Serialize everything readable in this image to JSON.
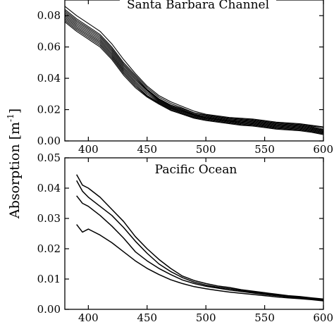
{
  "ylabel_text": "Absorption [m",
  "ylabel_sup": "-1",
  "ylabel_close": "]",
  "chart_data": [
    {
      "type": "line",
      "title": "Santa Barbara Channel",
      "xlabel": "",
      "ylabel": "Absorption [m-1]",
      "xlim": [
        380,
        600
      ],
      "ylim": [
        0,
        0.09
      ],
      "xticks": [
        400,
        450,
        500,
        550,
        600
      ],
      "xtick_labels": [
        "400",
        "450",
        "500",
        "550",
        "600"
      ],
      "yticks": [
        0,
        0.02,
        0.04,
        0.06,
        0.08
      ],
      "ytick_labels": [
        "0.00",
        "0.02",
        "0.04",
        "0.06",
        "0.08"
      ],
      "x": [
        380,
        390,
        400,
        410,
        420,
        430,
        440,
        450,
        460,
        470,
        480,
        490,
        500,
        510,
        520,
        530,
        540,
        550,
        560,
        570,
        580,
        590,
        600
      ],
      "series": [
        {
          "values": [
            0.086,
            0.08,
            0.075,
            0.07,
            0.062,
            0.052,
            0.043,
            0.035,
            0.029,
            0.025,
            0.022,
            0.019,
            0.017,
            0.016,
            0.015,
            0.0145,
            0.014,
            0.013,
            0.012,
            0.0115,
            0.011,
            0.01,
            0.009
          ]
        },
        {
          "values": [
            0.084,
            0.078,
            0.073,
            0.068,
            0.06,
            0.05,
            0.042,
            0.034,
            0.028,
            0.024,
            0.021,
            0.018,
            0.0165,
            0.0155,
            0.0145,
            0.014,
            0.0135,
            0.0125,
            0.0115,
            0.011,
            0.0105,
            0.0095,
            0.0085
          ]
        },
        {
          "values": [
            0.083,
            0.077,
            0.072,
            0.067,
            0.059,
            0.049,
            0.041,
            0.033,
            0.027,
            0.023,
            0.0205,
            0.0178,
            0.016,
            0.015,
            0.014,
            0.0135,
            0.013,
            0.012,
            0.011,
            0.0105,
            0.01,
            0.009,
            0.0075
          ]
        },
        {
          "values": [
            0.082,
            0.076,
            0.071,
            0.066,
            0.058,
            0.048,
            0.04,
            0.0325,
            0.0265,
            0.0225,
            0.02,
            0.0172,
            0.0155,
            0.0145,
            0.0135,
            0.013,
            0.0125,
            0.0115,
            0.0105,
            0.01,
            0.0095,
            0.0085,
            0.007
          ]
        },
        {
          "values": [
            0.081,
            0.075,
            0.07,
            0.065,
            0.057,
            0.047,
            0.039,
            0.032,
            0.026,
            0.022,
            0.0195,
            0.0168,
            0.015,
            0.014,
            0.013,
            0.0125,
            0.012,
            0.011,
            0.01,
            0.0095,
            0.009,
            0.008,
            0.0065
          ]
        },
        {
          "values": [
            0.08,
            0.074,
            0.069,
            0.064,
            0.056,
            0.046,
            0.038,
            0.031,
            0.0255,
            0.0215,
            0.019,
            0.0165,
            0.0148,
            0.0138,
            0.0128,
            0.012,
            0.0115,
            0.0105,
            0.0095,
            0.009,
            0.0085,
            0.0075,
            0.006
          ]
        },
        {
          "values": [
            0.079,
            0.073,
            0.068,
            0.063,
            0.055,
            0.045,
            0.037,
            0.03,
            0.025,
            0.021,
            0.0185,
            0.016,
            0.0145,
            0.0135,
            0.0125,
            0.0115,
            0.011,
            0.01,
            0.009,
            0.0085,
            0.008,
            0.007,
            0.0055
          ]
        },
        {
          "values": [
            0.078,
            0.072,
            0.067,
            0.062,
            0.054,
            0.044,
            0.036,
            0.029,
            0.0245,
            0.0205,
            0.018,
            0.0155,
            0.014,
            0.013,
            0.012,
            0.011,
            0.0105,
            0.0095,
            0.0085,
            0.008,
            0.0075,
            0.0065,
            0.005
          ]
        },
        {
          "values": [
            0.077,
            0.071,
            0.066,
            0.061,
            0.053,
            0.043,
            0.035,
            0.0285,
            0.024,
            0.02,
            0.0175,
            0.015,
            0.0135,
            0.0125,
            0.0115,
            0.0105,
            0.01,
            0.009,
            0.008,
            0.0075,
            0.007,
            0.006,
            0.0045
          ]
        },
        {
          "values": [
            0.076,
            0.07,
            0.065,
            0.06,
            0.052,
            0.042,
            0.034,
            0.028,
            0.0235,
            0.0195,
            0.017,
            0.0145,
            0.013,
            0.012,
            0.011,
            0.01,
            0.0095,
            0.0085,
            0.0075,
            0.007,
            0.0065,
            0.0055,
            0.004
          ]
        }
      ]
    },
    {
      "type": "line",
      "title": "Pacific Ocean",
      "xlabel": "",
      "ylabel": "Absorption [m-1]",
      "xlim": [
        380,
        600
      ],
      "ylim": [
        0,
        0.05
      ],
      "xticks": [
        400,
        450,
        500,
        550,
        600
      ],
      "xtick_labels": [
        "400",
        "450",
        "500",
        "550",
        "600"
      ],
      "yticks": [
        0,
        0.01,
        0.02,
        0.03,
        0.04,
        0.05
      ],
      "ytick_labels": [
        "0.00",
        "0.01",
        "0.02",
        "0.03",
        "0.04",
        "0.05"
      ],
      "x": [
        390,
        395,
        400,
        410,
        420,
        430,
        440,
        450,
        460,
        470,
        480,
        490,
        500,
        510,
        520,
        530,
        540,
        550,
        560,
        570,
        580,
        590,
        600
      ],
      "series": [
        {
          "values": [
            0.0445,
            0.041,
            0.04,
            0.037,
            0.033,
            0.029,
            0.024,
            0.02,
            0.0165,
            0.0135,
            0.011,
            0.0095,
            0.0085,
            0.0077,
            0.0072,
            0.0065,
            0.006,
            0.0055,
            0.005,
            0.0045,
            0.0042,
            0.0038,
            0.0034
          ]
        },
        {
          "values": [
            0.0425,
            0.039,
            0.037,
            0.034,
            0.031,
            0.027,
            0.0225,
            0.0185,
            0.015,
            0.0125,
            0.0105,
            0.009,
            0.008,
            0.0073,
            0.0068,
            0.0062,
            0.0057,
            0.0052,
            0.0047,
            0.0043,
            0.004,
            0.0036,
            0.0032
          ]
        },
        {
          "values": [
            0.0375,
            0.035,
            0.034,
            0.031,
            0.0275,
            0.0235,
            0.019,
            0.016,
            0.0135,
            0.0115,
            0.0097,
            0.0085,
            0.0076,
            0.007,
            0.0064,
            0.0059,
            0.0054,
            0.0049,
            0.0045,
            0.0041,
            0.0038,
            0.0034,
            0.003
          ]
        },
        {
          "values": [
            0.028,
            0.0255,
            0.0265,
            0.0245,
            0.022,
            0.019,
            0.016,
            0.0135,
            0.0115,
            0.0098,
            0.0085,
            0.0075,
            0.0068,
            0.0062,
            0.0057,
            0.0053,
            0.0049,
            0.0045,
            0.0041,
            0.0038,
            0.0035,
            0.0032,
            0.0028
          ]
        }
      ]
    }
  ]
}
